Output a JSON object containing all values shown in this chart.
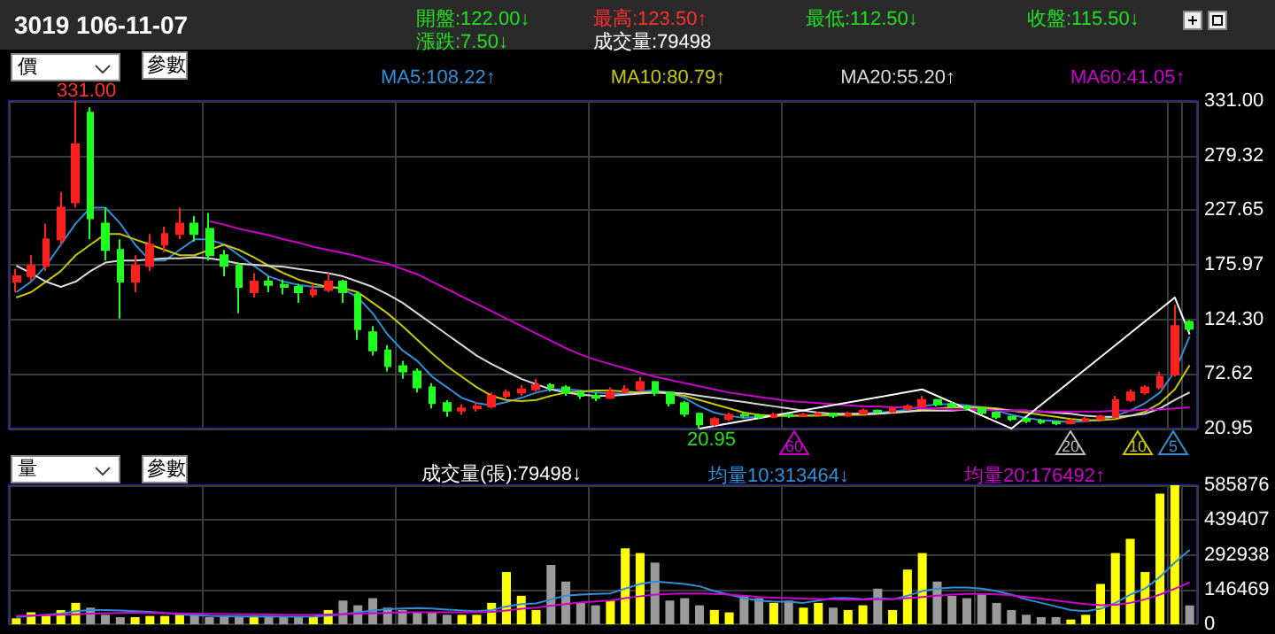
{
  "chart_data": [
    {
      "type": "candlestick",
      "title": "3019 106-11-07",
      "categories": [
        null,
        null,
        null,
        null,
        null,
        null,
        null,
        null,
        null,
        null,
        null,
        null,
        null,
        null,
        null,
        null,
        null,
        null,
        null,
        null,
        null,
        null,
        null,
        null,
        null,
        null,
        null,
        null,
        null,
        null,
        null,
        null,
        null,
        null,
        null,
        null,
        null,
        null,
        null,
        null,
        null,
        null,
        null,
        null,
        null,
        null,
        null,
        null,
        null,
        null,
        null,
        null,
        null,
        null,
        null,
        null,
        null,
        null,
        null,
        null,
        null,
        null,
        null,
        null,
        null,
        null,
        null,
        null,
        null,
        null,
        null,
        null,
        null,
        null,
        null,
        null,
        null,
        null,
        null,
        null
      ],
      "ohlc": [
        [
          160,
          172,
          150,
          165
        ],
        [
          165,
          185,
          160,
          175
        ],
        [
          175,
          215,
          170,
          200
        ],
        [
          200,
          245,
          195,
          230
        ],
        [
          235,
          331,
          230,
          290
        ],
        [
          320,
          325,
          200,
          220
        ],
        [
          215,
          230,
          180,
          190
        ],
        [
          190,
          200,
          125,
          160
        ],
        [
          160,
          185,
          150,
          175
        ],
        [
          175,
          205,
          170,
          195
        ],
        [
          195,
          212,
          188,
          205
        ],
        [
          205,
          230,
          200,
          215
        ],
        [
          215,
          222,
          198,
          205
        ],
        [
          210,
          225,
          180,
          185
        ],
        [
          185,
          190,
          165,
          175
        ],
        [
          175,
          178,
          130,
          155
        ],
        [
          150,
          168,
          145,
          160
        ],
        [
          160,
          165,
          150,
          157
        ],
        [
          157,
          162,
          148,
          155
        ],
        [
          155,
          158,
          140,
          150
        ],
        [
          148,
          158,
          145,
          152
        ],
        [
          152,
          168,
          150,
          160
        ],
        [
          160,
          162,
          140,
          150
        ],
        [
          148,
          150,
          105,
          115
        ],
        [
          112,
          118,
          90,
          95
        ],
        [
          95,
          100,
          75,
          80
        ],
        [
          80,
          85,
          68,
          75
        ],
        [
          75,
          78,
          55,
          60
        ],
        [
          60,
          64,
          40,
          45
        ],
        [
          45,
          48,
          32,
          38
        ],
        [
          38,
          44,
          34,
          40
        ],
        [
          40,
          46,
          37,
          42
        ],
        [
          42,
          55,
          40,
          52
        ],
        [
          52,
          58,
          49,
          55
        ],
        [
          55,
          62,
          52,
          58
        ],
        [
          58,
          68,
          56,
          62
        ],
        [
          62,
          64,
          56,
          60
        ],
        [
          60,
          62,
          52,
          55
        ],
        [
          55,
          57,
          49,
          52
        ],
        [
          52,
          55,
          47,
          50
        ],
        [
          50,
          60,
          49,
          56
        ],
        [
          56,
          62,
          54,
          58
        ],
        [
          58,
          70,
          56,
          65
        ],
        [
          65,
          66,
          52,
          55
        ],
        [
          55,
          56,
          42,
          45
        ],
        [
          45,
          47,
          32,
          35
        ],
        [
          35,
          36,
          20.95,
          25
        ],
        [
          25,
          32,
          23,
          30
        ],
        [
          30,
          36,
          28,
          34
        ],
        [
          34,
          36,
          31,
          33
        ],
        [
          33,
          35,
          30,
          32
        ],
        [
          32,
          36,
          31,
          34
        ],
        [
          34,
          35,
          31,
          33
        ],
        [
          33,
          36,
          32,
          34
        ],
        [
          34,
          37,
          33,
          35
        ],
        [
          35,
          36,
          31,
          33
        ],
        [
          33,
          37,
          32,
          35
        ],
        [
          35,
          40,
          34,
          38
        ],
        [
          38,
          39,
          35,
          37
        ],
        [
          37,
          42,
          36,
          40
        ],
        [
          40,
          44,
          38,
          42
        ],
        [
          42,
          52,
          41,
          48
        ],
        [
          48,
          49,
          42,
          44
        ],
        [
          44,
          46,
          40,
          42
        ],
        [
          42,
          43,
          38,
          40
        ],
        [
          40,
          41,
          34,
          36
        ],
        [
          36,
          37,
          30,
          32
        ],
        [
          32,
          33,
          28,
          30
        ],
        [
          30,
          31,
          26,
          28
        ],
        [
          28,
          30,
          25,
          27
        ],
        [
          27,
          28,
          24,
          26
        ],
        [
          26,
          30,
          25,
          28
        ],
        [
          28,
          32,
          27,
          30
        ],
        [
          30,
          34,
          29,
          32
        ],
        [
          32,
          52,
          31,
          48
        ],
        [
          48,
          58,
          46,
          55
        ],
        [
          55,
          62,
          53,
          60
        ],
        [
          60,
          75,
          58,
          70
        ],
        [
          72,
          138,
          70,
          118
        ],
        [
          122,
          123.5,
          112.5,
          115.5
        ]
      ],
      "ylim": [
        20.95,
        331
      ],
      "yticks": [
        20.95,
        72.62,
        {
          "value": 124.3,
          "label": "124.30"
        },
        175.97,
        227.65,
        279.32,
        {
          "value": 331,
          "label": "331.00"
        }
      ],
      "grid": true,
      "legend": "top",
      "series": [
        {
          "name": "MA5:108.22↑",
          "type": "line",
          "color": "#2f8fd8",
          "values": [
            150,
            160,
            175,
            195,
            215,
            230,
            230,
            215,
            195,
            180,
            180,
            190,
            200,
            200,
            195,
            185,
            175,
            165,
            160,
            157,
            155,
            155,
            153,
            145,
            130,
            110,
            95,
            85,
            70,
            60,
            50,
            45,
            43,
            46,
            50,
            55,
            58,
            58,
            57,
            55,
            54,
            54,
            56,
            57,
            55,
            50,
            42,
            36,
            33,
            31,
            32,
            33,
            33,
            33,
            34,
            34,
            34,
            35,
            36,
            37,
            39,
            42,
            44,
            44,
            43,
            41,
            38,
            34,
            31,
            29,
            28,
            27,
            28,
            29,
            33,
            38,
            45,
            55,
            75,
            108.22
          ]
        },
        {
          "name": "MA10:80.79↑",
          "type": "line",
          "color": "#c8c800",
          "values": [
            145,
            150,
            160,
            170,
            185,
            195,
            205,
            205,
            200,
            195,
            190,
            185,
            185,
            190,
            195,
            190,
            183,
            175,
            168,
            162,
            158,
            155,
            154,
            150,
            140,
            130,
            118,
            105,
            92,
            80,
            70,
            60,
            52,
            48,
            47,
            48,
            52,
            55,
            56,
            57,
            57,
            56,
            55,
            55,
            54,
            52,
            48,
            44,
            40,
            36,
            34,
            33,
            33,
            33,
            33,
            34,
            34,
            34,
            35,
            36,
            37,
            39,
            40,
            41,
            41,
            41,
            40,
            38,
            36,
            34,
            32,
            30,
            29,
            29,
            30,
            33,
            37,
            45,
            58,
            80.79
          ]
        },
        {
          "name": "MA20:55.20↑",
          "type": "line",
          "color": "#d8d8d8",
          "values": [
            175,
            168,
            160,
            155,
            160,
            170,
            178,
            180,
            180,
            181,
            182,
            182,
            183,
            182,
            180,
            177,
            176,
            175,
            174,
            172,
            170,
            168,
            165,
            160,
            155,
            148,
            140,
            130,
            120,
            110,
            100,
            90,
            82,
            75,
            68,
            63,
            58,
            55,
            53,
            52,
            52,
            53,
            54,
            55,
            55,
            54,
            52,
            50,
            48,
            46,
            44,
            42,
            40,
            38,
            36,
            35,
            35,
            35,
            35,
            36,
            37,
            38,
            38,
            38,
            39,
            39,
            39,
            38,
            38,
            37,
            36,
            35,
            33,
            32,
            32,
            33,
            35,
            40,
            48,
            55.2
          ]
        },
        {
          "name": "MA60:41.05↑",
          "type": "line",
          "color": "#cc00cc",
          "values": [
            null,
            null,
            null,
            null,
            null,
            null,
            null,
            null,
            null,
            null,
            null,
            null,
            null,
            217,
            214,
            210,
            207,
            204,
            200,
            197,
            193,
            190,
            187,
            184,
            180,
            177,
            172,
            167,
            160,
            153,
            146,
            139,
            132,
            125,
            118,
            111,
            104,
            97,
            91,
            86,
            82,
            78,
            74,
            70,
            67,
            64,
            61,
            58,
            55,
            53,
            51,
            49,
            47,
            46,
            45,
            44,
            43,
            42,
            42,
            41,
            41,
            40,
            40,
            39,
            39,
            39,
            38,
            38,
            38,
            37,
            37,
            37,
            37,
            37,
            38,
            38,
            39,
            39,
            40,
            41.05
          ]
        },
        {
          "type": "line",
          "color": "#ffffff",
          "values": [
            null,
            null,
            null,
            null,
            null,
            null,
            null,
            null,
            null,
            null,
            null,
            null,
            null,
            null,
            null,
            null,
            null,
            null,
            null,
            null,
            null,
            null,
            null,
            null,
            null,
            null,
            null,
            null,
            null,
            null,
            null,
            null,
            null,
            null,
            null,
            null,
            null,
            null,
            null,
            null,
            null,
            null,
            null,
            null,
            null,
            null,
            21,
            null,
            null,
            null,
            null,
            null,
            null,
            null,
            null,
            null,
            null,
            null,
            null,
            null,
            null,
            58,
            null,
            null,
            null,
            null,
            null,
            21,
            null,
            null,
            null,
            null,
            null,
            null,
            null,
            null,
            null,
            null,
            145,
            110
          ]
        }
      ],
      "annotations": [
        "開盤:122.00↓",
        "最高:123.50↑",
        "最低:112.50↓",
        "收盤:115.50↓",
        "漲跌:7.50↓",
        "成交量:79498",
        "價",
        "參數",
        "331.00",
        "20.95",
        "60",
        "20",
        "10",
        "5"
      ]
    },
    {
      "type": "bar",
      "categories": [
        null,
        null,
        null,
        null,
        null,
        null,
        null,
        null,
        null,
        null,
        null,
        null,
        null,
        null,
        null,
        null,
        null,
        null,
        null,
        null,
        null,
        null,
        null,
        null,
        null,
        null,
        null,
        null,
        null,
        null,
        null,
        null,
        null,
        null,
        null,
        null,
        null,
        null,
        null,
        null,
        null,
        null,
        null,
        null,
        null,
        null,
        null,
        null,
        null,
        null,
        null,
        null,
        null,
        null,
        null,
        null,
        null,
        null,
        null,
        null,
        null,
        null,
        null,
        null,
        null,
        null,
        null,
        null,
        null,
        null,
        null,
        null,
        null,
        null,
        null,
        null,
        null,
        null,
        null,
        null
      ],
      "values": [
        25000,
        50000,
        40000,
        60000,
        90000,
        70000,
        40000,
        30000,
        30000,
        35000,
        35000,
        40000,
        40000,
        30000,
        30000,
        30000,
        35000,
        30000,
        30000,
        30000,
        30000,
        60000,
        100000,
        80000,
        110000,
        70000,
        60000,
        50000,
        50000,
        40000,
        40000,
        40000,
        90000,
        220000,
        120000,
        60000,
        250000,
        180000,
        90000,
        80000,
        100000,
        320000,
        300000,
        260000,
        100000,
        110000,
        80000,
        60000,
        50000,
        120000,
        110000,
        90000,
        100000,
        70000,
        90000,
        70000,
        60000,
        80000,
        150000,
        60000,
        230000,
        300000,
        180000,
        120000,
        110000,
        130000,
        90000,
        60000,
        40000,
        30000,
        30000,
        20000,
        40000,
        170000,
        300000,
        360000,
        220000,
        550000,
        585876,
        79498
      ],
      "colors": [
        "#ffff00",
        "#ffff00",
        "#ffff00",
        "#ffff00",
        "#ffff00",
        "#9a9a9a",
        "#9a9a9a",
        "#9a9a9a",
        "#ffff00",
        "#ffff00",
        "#ffff00",
        "#ffff00",
        "#9a9a9a",
        "#9a9a9a",
        "#9a9a9a",
        "#9a9a9a",
        "#ffff00",
        "#9a9a9a",
        "#9a9a9a",
        "#9a9a9a",
        "#ffff00",
        "#ffff00",
        "#9a9a9a",
        "#9a9a9a",
        "#9a9a9a",
        "#9a9a9a",
        "#9a9a9a",
        "#9a9a9a",
        "#9a9a9a",
        "#9a9a9a",
        "#ffff00",
        "#ffff00",
        "#ffff00",
        "#ffff00",
        "#ffff00",
        "#ffff00",
        "#9a9a9a",
        "#9a9a9a",
        "#9a9a9a",
        "#9a9a9a",
        "#ffff00",
        "#ffff00",
        "#ffff00",
        "#9a9a9a",
        "#9a9a9a",
        "#9a9a9a",
        "#9a9a9a",
        "#ffff00",
        "#ffff00",
        "#9a9a9a",
        "#9a9a9a",
        "#ffff00",
        "#9a9a9a",
        "#ffff00",
        "#ffff00",
        "#9a9a9a",
        "#ffff00",
        "#ffff00",
        "#9a9a9a",
        "#ffff00",
        "#ffff00",
        "#ffff00",
        "#9a9a9a",
        "#9a9a9a",
        "#9a9a9a",
        "#9a9a9a",
        "#9a9a9a",
        "#9a9a9a",
        "#9a9a9a",
        "#9a9a9a",
        "#9a9a9a",
        "#ffff00",
        "#ffff00",
        "#ffff00",
        "#ffff00",
        "#ffff00",
        "#ffff00",
        "#ffff00",
        "#ffff00",
        "#9a9a9a"
      ],
      "ylim": [
        0,
        585876
      ],
      "yticks": [
        0,
        146469,
        292938,
        439407,
        585876
      ],
      "grid": true,
      "legend": "top",
      "series": [
        {
          "name": "均量10:313464↓",
          "type": "line",
          "color": "#2f8fd8",
          "values": [
            30000,
            35000,
            40000,
            45000,
            55000,
            60000,
            60000,
            58000,
            55000,
            52000,
            48000,
            42000,
            38000,
            35000,
            34000,
            33000,
            33000,
            33000,
            32000,
            32000,
            33000,
            36000,
            42000,
            50000,
            58000,
            63000,
            66000,
            68000,
            66000,
            62000,
            58000,
            55000,
            60000,
            75000,
            85000,
            88000,
            105000,
            120000,
            125000,
            128000,
            130000,
            150000,
            170000,
            180000,
            175000,
            170000,
            160000,
            140000,
            125000,
            110000,
            100000,
            95000,
            95000,
            90000,
            100000,
            110000,
            110000,
            105000,
            110000,
            105000,
            120000,
            140000,
            150000,
            155000,
            155000,
            150000,
            140000,
            125000,
            105000,
            90000,
            75000,
            60000,
            55000,
            65000,
            90000,
            125000,
            150000,
            200000,
            260000,
            313464
          ]
        },
        {
          "name": "均量20:176492↑",
          "type": "line",
          "color": "#cc00cc",
          "values": [
            35000,
            36000,
            38000,
            40000,
            42000,
            45000,
            47000,
            48000,
            49000,
            48000,
            47000,
            46000,
            45000,
            44000,
            43000,
            42000,
            42000,
            41000,
            40000,
            40000,
            40000,
            41000,
            43000,
            45000,
            47000,
            48000,
            50000,
            50000,
            50000,
            50000,
            50000,
            50000,
            52000,
            58000,
            65000,
            70000,
            78000,
            85000,
            92000,
            96000,
            100000,
            110000,
            118000,
            125000,
            128000,
            130000,
            130000,
            128000,
            125000,
            120000,
            115000,
            112000,
            110000,
            108000,
            106000,
            105000,
            104000,
            104000,
            105000,
            106000,
            110000,
            115000,
            120000,
            125000,
            128000,
            128000,
            126000,
            122000,
            115000,
            108000,
            100000,
            92000,
            85000,
            80000,
            82000,
            90000,
            105000,
            125000,
            150000,
            176492
          ]
        }
      ],
      "annotations": [
        "量",
        "參數",
        "成交量(張):79498↓"
      ]
    }
  ]
}
